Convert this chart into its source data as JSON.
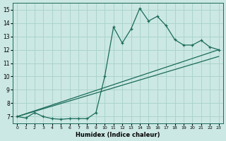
{
  "xlabel": "Humidex (Indice chaleur)",
  "bg_color": "#cce8e4",
  "grid_color": "#aad4cc",
  "line_color": "#1a6b5a",
  "xlim": [
    -0.5,
    23.5
  ],
  "ylim": [
    6.5,
    15.5
  ],
  "xticks": [
    0,
    1,
    2,
    3,
    4,
    5,
    6,
    7,
    8,
    9,
    10,
    11,
    12,
    13,
    14,
    15,
    16,
    17,
    18,
    19,
    20,
    21,
    22,
    23
  ],
  "yticks": [
    7,
    8,
    9,
    10,
    11,
    12,
    13,
    14,
    15
  ],
  "main_x": [
    0,
    1,
    2,
    3,
    4,
    5,
    6,
    7,
    8,
    9,
    10,
    11,
    12,
    13,
    14,
    15,
    16,
    17,
    18,
    19,
    20,
    21,
    22,
    23
  ],
  "main_y": [
    7.0,
    6.9,
    7.3,
    7.0,
    6.85,
    6.8,
    6.85,
    6.85,
    6.85,
    7.3,
    10.0,
    13.7,
    12.5,
    13.55,
    15.1,
    14.15,
    14.5,
    13.8,
    12.75,
    12.35,
    12.35,
    12.7,
    12.2,
    12.0
  ],
  "line1_x": [
    0,
    23
  ],
  "line1_y": [
    7.0,
    12.0
  ],
  "line2_x": [
    0,
    23
  ],
  "line2_y": [
    7.0,
    11.5
  ]
}
